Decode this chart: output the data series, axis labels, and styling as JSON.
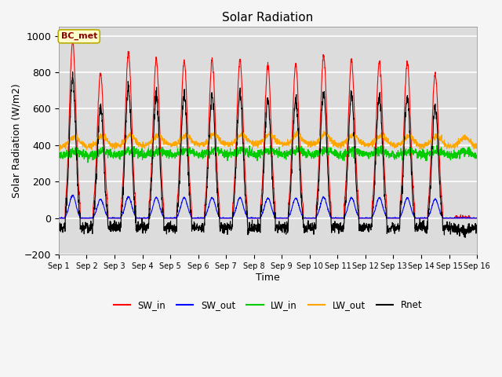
{
  "title": "Solar Radiation",
  "xlabel": "Time",
  "ylabel": "Solar Radiation (W/m2)",
  "ylim": [
    -200,
    1050
  ],
  "xlim_days": 15,
  "n_days": 15,
  "annotation": "BC_met",
  "series_colors": {
    "SW_in": "#ff0000",
    "SW_out": "#0000ff",
    "LW_in": "#00cc00",
    "LW_out": "#ffa500",
    "Rnet": "#000000"
  },
  "legend_labels": [
    "SW_in",
    "SW_out",
    "LW_in",
    "LW_out",
    "Rnet"
  ],
  "background_color": "#dcdcdc",
  "tick_dates": [
    "Sep 1",
    "Sep 2",
    "Sep 3",
    "Sep 4",
    "Sep 5",
    "Sep 6",
    "Sep 7",
    "Sep 8",
    "Sep 9",
    "Sep 10",
    "Sep 11",
    "Sep 12",
    "Sep 13",
    "Sep 14",
    "Sep 15",
    "Sep 16"
  ],
  "sw_peaks": [
    970,
    795,
    905,
    870,
    865,
    865,
    865,
    840,
    845,
    890,
    865,
    860,
    855,
    790,
    0
  ],
  "lw_out_base": 390,
  "lw_in_base": 340
}
